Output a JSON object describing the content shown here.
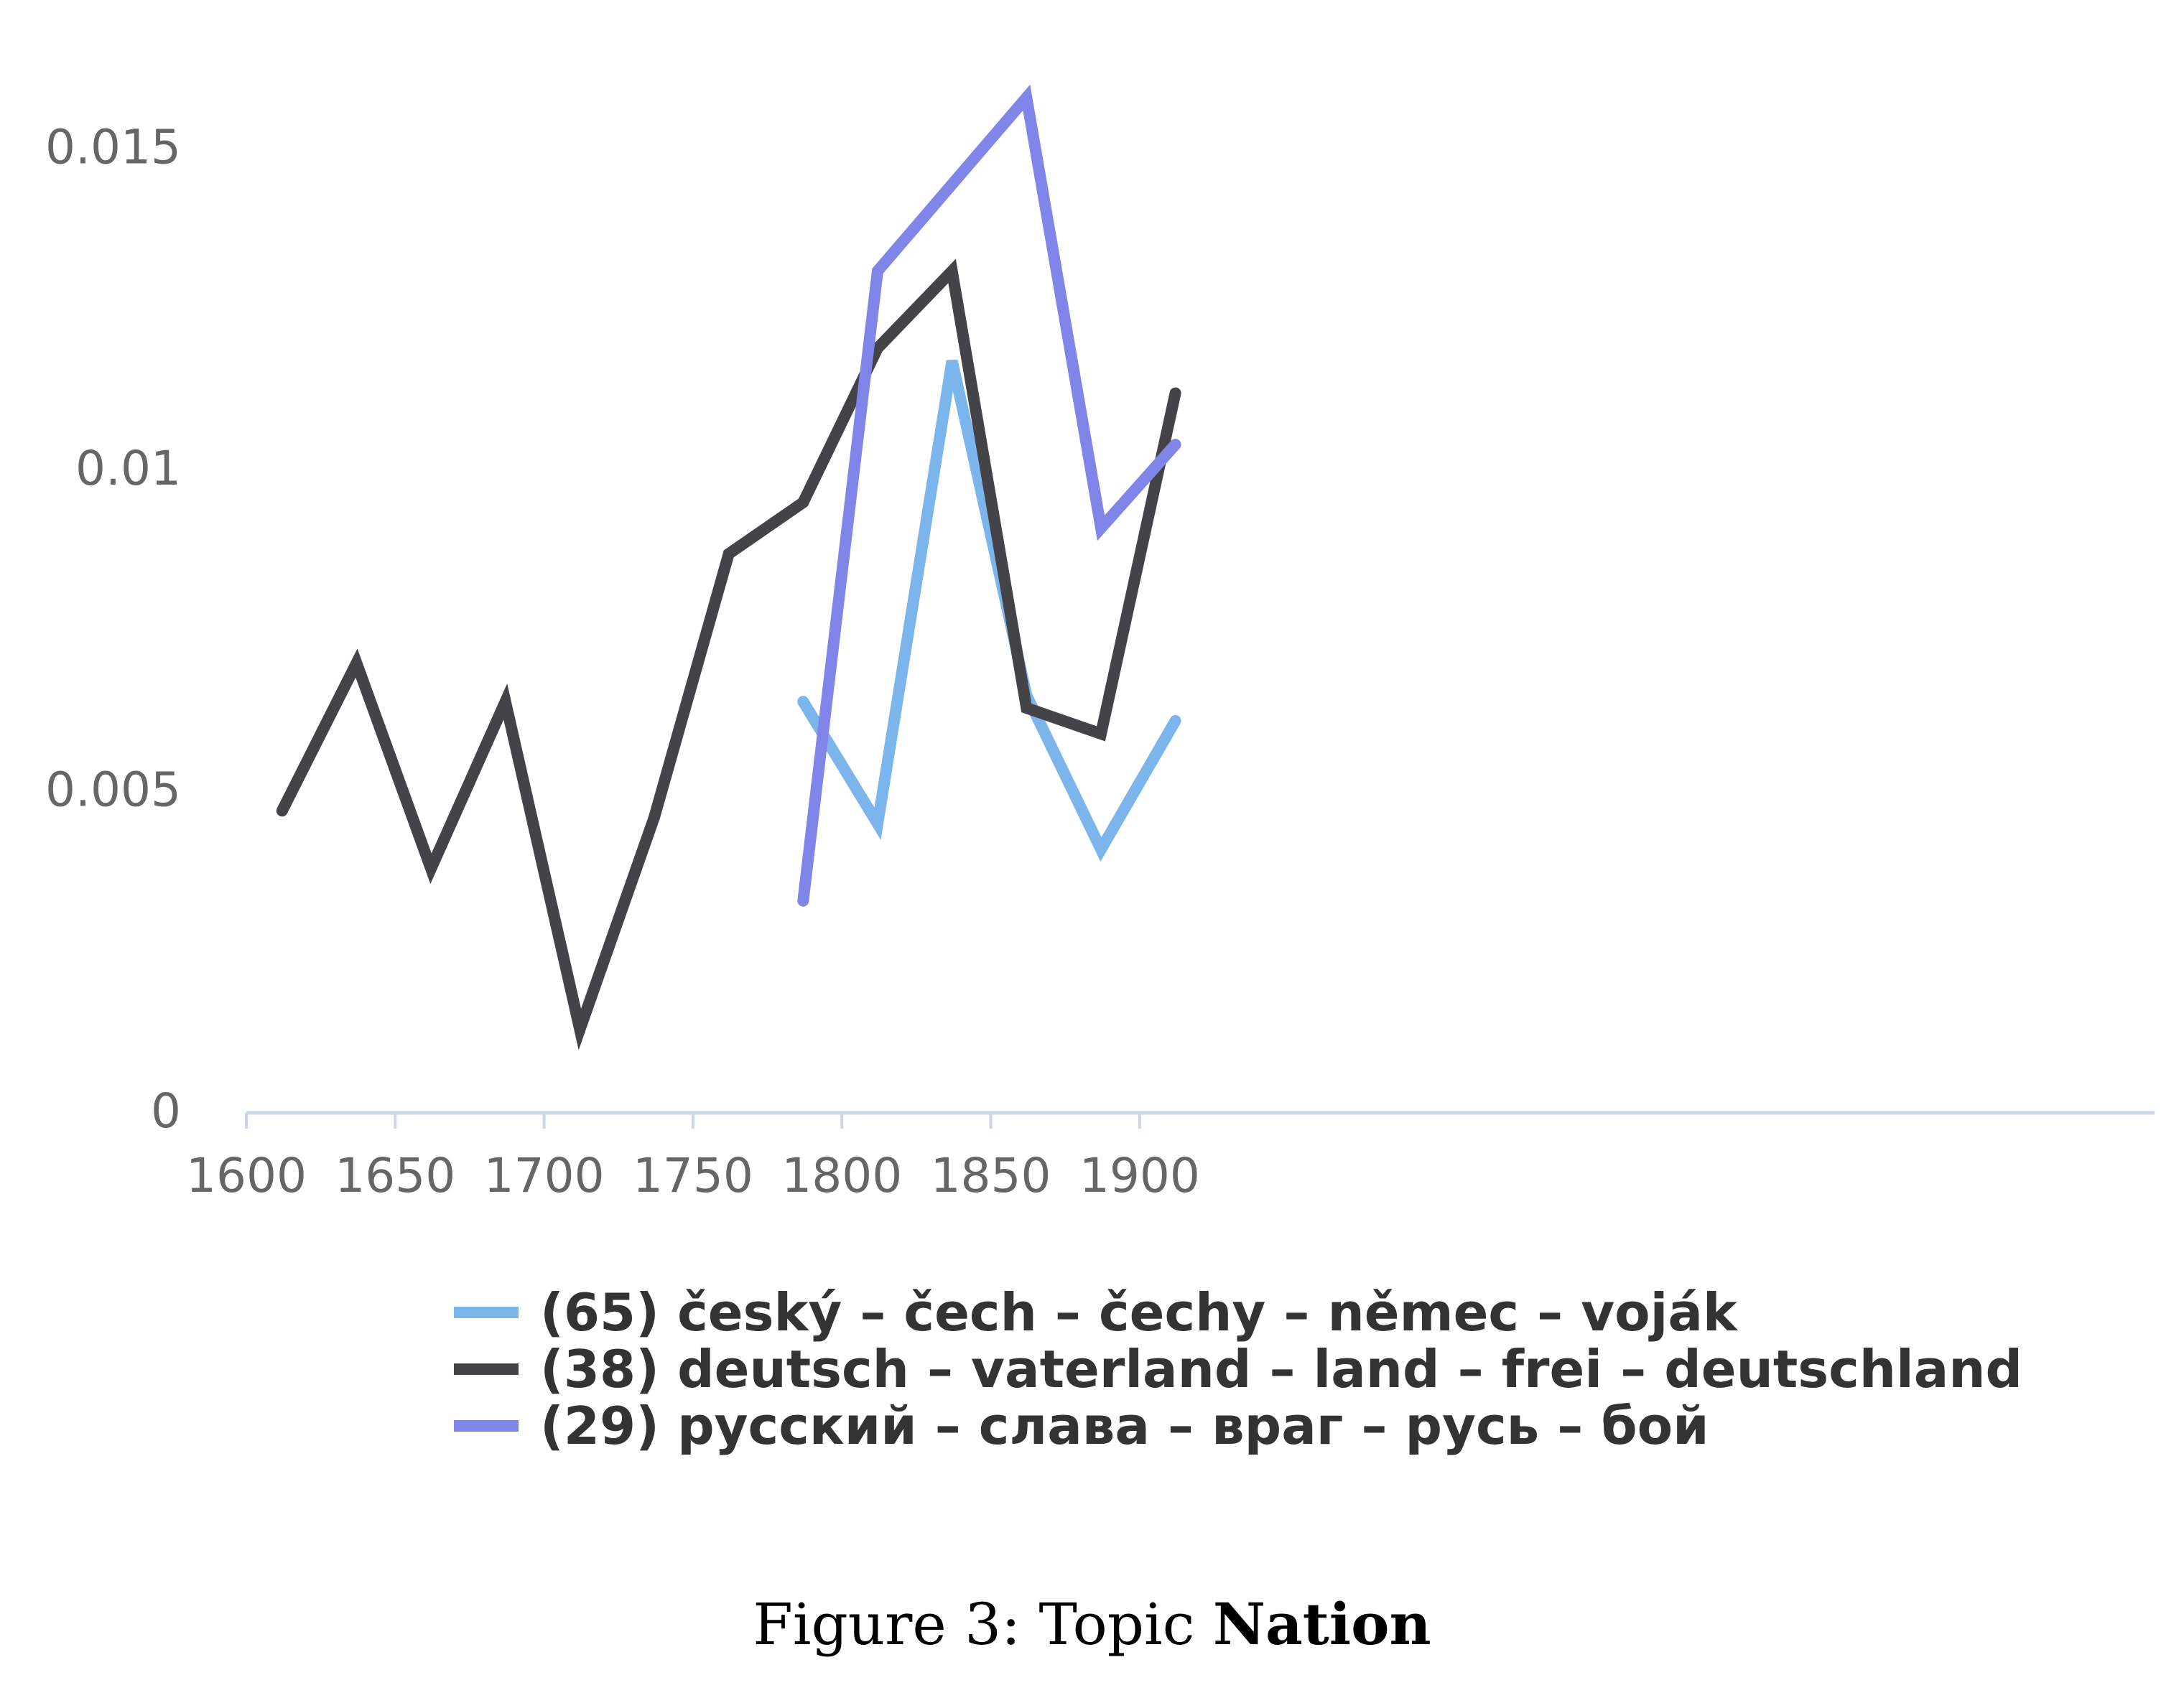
{
  "chart_data": {
    "type": "line",
    "title": "",
    "xlabel": "",
    "ylabel": "",
    "xlim": [
      1600,
      1920
    ],
    "ylim": [
      0,
      0.017
    ],
    "x_ticks": [
      {
        "value": 1600,
        "label": "1600"
      },
      {
        "value": 1650,
        "label": "1650"
      },
      {
        "value": 1700,
        "label": "1700"
      },
      {
        "value": 1750,
        "label": "1750"
      },
      {
        "value": 1800,
        "label": "1800"
      },
      {
        "value": 1850,
        "label": "1850"
      },
      {
        "value": 1900,
        "label": "1900"
      }
    ],
    "y_ticks": [
      {
        "value": 0,
        "label": "0"
      },
      {
        "value": 0.005,
        "label": "0.005"
      },
      {
        "value": 0.01,
        "label": "0.01"
      },
      {
        "value": 0.015,
        "label": "0.015"
      }
    ],
    "grid": false,
    "legend_position": "bottom",
    "series": [
      {
        "name": "(65) český – čech – čechy – němec – voják",
        "color": "#7cb5ec",
        "x": [
          1787,
          1812,
          1837,
          1862,
          1887,
          1912
        ],
        "y": [
          0.0064,
          0.0045,
          0.0117,
          0.0065,
          0.0041,
          0.0061
        ]
      },
      {
        "name": "(38) deutsch – vaterland – land – frei – deutschland",
        "color": "#434348",
        "x": [
          1612,
          1637,
          1662,
          1687,
          1712,
          1737,
          1762,
          1787,
          1812,
          1837,
          1862,
          1887,
          1912
        ],
        "y": [
          0.0047,
          0.007,
          0.0038,
          0.0064,
          0.0013,
          0.0046,
          0.0087,
          0.0095,
          0.0119,
          0.0131,
          0.0063,
          0.0059,
          0.0112
        ]
      },
      {
        "name": "(29) русский – слава – враг – русь – бой",
        "color": "#8085e9",
        "x": [
          1787,
          1812,
          1862,
          1887,
          1912
        ],
        "y": [
          0.0033,
          0.0131,
          0.0158,
          0.0091,
          0.0104
        ]
      }
    ]
  },
  "caption": {
    "prefix": "Figure 3: Topic ",
    "bold": "Nation"
  }
}
